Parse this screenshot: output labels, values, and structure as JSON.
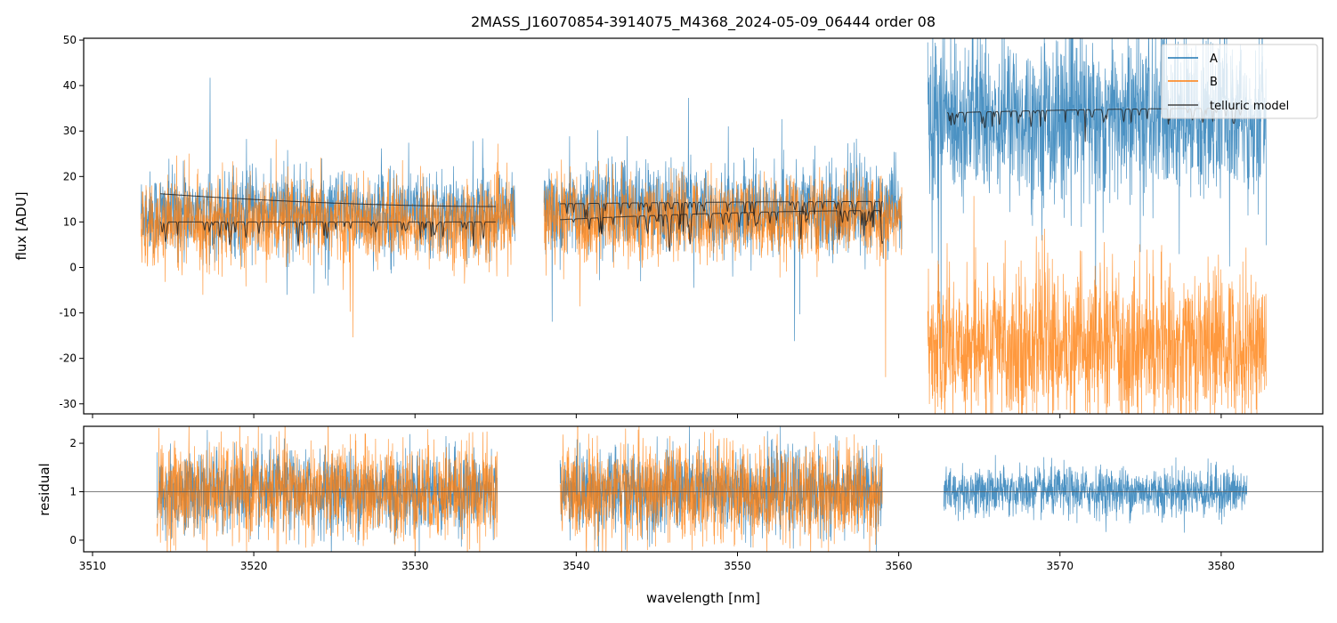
{
  "chart_data": [
    {
      "type": "line",
      "title": "2MASS_J16070854-3914075_M4368_2024-05-09_06444  order 08",
      "xlabel": "",
      "ylabel": "flux [ADU]",
      "xlim": [
        3509.45,
        3586.3
      ],
      "ylim": [
        -32.2,
        50.4
      ],
      "yticks": [
        -30,
        -20,
        -10,
        0,
        10,
        20,
        30,
        40,
        50
      ],
      "xticks": [
        3510,
        3520,
        3530,
        3540,
        3550,
        3560,
        3570,
        3580
      ],
      "legend": {
        "placement": "top-right",
        "entries": [
          "A",
          "B",
          "telluric model"
        ]
      },
      "colors": {
        "A": "#1f77b4",
        "B": "#ff7f0e",
        "telluric": "#222222"
      },
      "segments": [
        {
          "range": [
            3513.0,
            3536.2
          ],
          "A_mean": 12,
          "A_sd": 4.5,
          "B_mean": 10,
          "B_sd": 4.5,
          "telluric": [
            {
              "range": [
                3514.2,
                3535.0
              ],
              "start": 16.2,
              "end": 13.4,
              "dips": false
            },
            {
              "range": [
                3514.2,
                3535.0
              ],
              "start": 10.0,
              "end": 10.0,
              "dips": true
            }
          ]
        },
        {
          "range": [
            3538.0,
            3560.2
          ],
          "A_mean": 13,
          "A_sd": 4.8,
          "B_mean": 11,
          "B_sd": 4.5,
          "telluric": [
            {
              "range": [
                3539.0,
                3559.0
              ],
              "start": 14.0,
              "end": 14.5,
              "dips": true
            },
            {
              "range": [
                3539.0,
                3559.0
              ],
              "start": 10.5,
              "end": 12.5,
              "dips": true
            }
          ]
        },
        {
          "range": [
            3561.8,
            3582.8
          ],
          "A_mean": 33,
          "A_sd": 9,
          "B_mean": -17,
          "B_sd": 8,
          "telluric": [
            {
              "range": [
                3563.0,
                3581.5
              ],
              "start": 34.0,
              "end": 35.0,
              "dips": true
            }
          ]
        }
      ]
    },
    {
      "type": "line",
      "xlabel": "wavelength [nm]",
      "ylabel": "residual",
      "xlim": [
        3509.45,
        3586.3
      ],
      "ylim": [
        -0.24,
        2.35
      ],
      "yticks": [
        0,
        1,
        2
      ],
      "xticks": [
        3510,
        3520,
        3530,
        3540,
        3550,
        3560,
        3570,
        3580
      ],
      "reference_line": 1,
      "segments": [
        {
          "range": [
            3514.0,
            3535.1
          ],
          "A_sd": 0.42,
          "B_sd": 0.5,
          "has_B": true
        },
        {
          "range": [
            3539.0,
            3559.0
          ],
          "A_sd": 0.42,
          "B_sd": 0.5,
          "has_B": true
        },
        {
          "range": [
            3562.8,
            3581.6
          ],
          "A_sd": 0.25,
          "has_B": false
        }
      ]
    }
  ]
}
